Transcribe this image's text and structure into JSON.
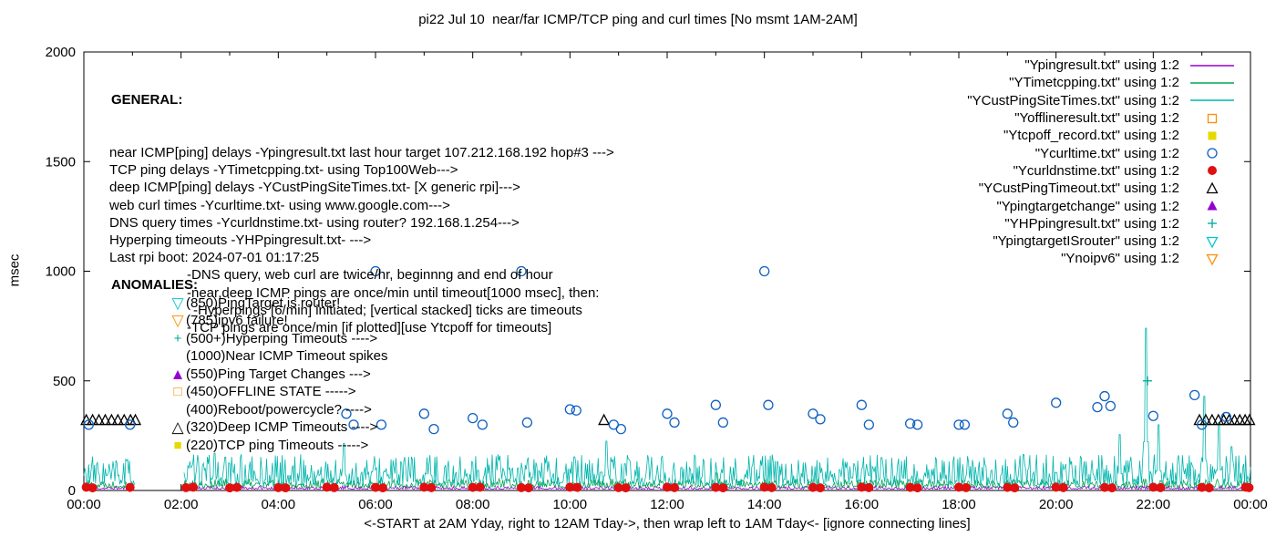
{
  "title": "pi22 Jul 10  near/far ICMP/TCP ping and curl times [No msmt 1AM-2AM]",
  "xlabel": "<-START at 2AM Yday, right to 12AM Tday->, then wrap left to 1AM Tday<- [ignore connecting lines]",
  "general": {
    "heading": "GENERAL:",
    "lines": [
      {
        "text": "near ICMP[ping] delays -Ypingresult.txt last hour target 107.212.168.192 hop#3 --->",
        "indent": 0
      },
      {
        "text": "TCP ping delays -YTimetcpping.txt- using Top100Web--->",
        "indent": 0
      },
      {
        "text": "deep ICMP[ping] delays -YCustPingSiteTimes.txt- [X generic rpi]--->",
        "indent": 0
      },
      {
        "text": "web curl times -Ycurltime.txt- using www.google.com--->",
        "indent": 0
      },
      {
        "text": "DNS query times -Ycurldnstime.txt- using router? 192.168.1.254--->",
        "indent": 0
      },
      {
        "text": "Hyperping timeouts -YHPpingresult.txt- --->",
        "indent": 0
      },
      {
        "text": "Last rpi boot: 2024-07-01 01:17:25",
        "indent": 0
      },
      {
        "text": "-DNS query, web curl are twice/hr, beginnng and end of hour",
        "indent": 1
      },
      {
        "text": "-near,deep ICMP pings are once/min until timeout[1000 msec], then:",
        "indent": 1
      },
      {
        "text": "-Hyperpings [6/min] initiated; [vertical stacked] ticks are timeouts",
        "indent": 2
      },
      {
        "text": "-TCP pings are once/min [if plotted][use Ytcpoff for timeouts]",
        "indent": 1
      }
    ]
  },
  "anomalies": {
    "heading": "ANOMALIES:",
    "items": [
      {
        "symbol": "triangle-down-open",
        "glyph": "▽",
        "color": "#00c5cd",
        "text": "(850)PingTarget is router!"
      },
      {
        "symbol": "triangle-down-open",
        "glyph": "▽",
        "color": "#ff8c00",
        "text": "(785)ipv6 failure!"
      },
      {
        "symbol": "plus",
        "glyph": "+",
        "color": "#00a896",
        "text": "(500+)Hyperping Timeouts ---->"
      },
      {
        "symbol": "none",
        "glyph": "",
        "color": "#000000",
        "text": "(1000)Near ICMP Timeout spikes"
      },
      {
        "symbol": "triangle-filled",
        "glyph": "▲",
        "color": "#9400d3",
        "text": "(550)Ping Target Changes --->"
      },
      {
        "symbol": "square-open",
        "glyph": "□",
        "color": "#ff8c00",
        "text": "(450)OFFLINE STATE ----->"
      },
      {
        "symbol": "none",
        "glyph": "",
        "color": "#000000",
        "text": "(400)Reboot/powercycle? ---->"
      },
      {
        "symbol": "triangle-open",
        "glyph": "△",
        "color": "#000000",
        "text": "(320)Deep ICMP Timeouts ---->"
      },
      {
        "symbol": "square-filled",
        "glyph": "■",
        "color": "#e6d800",
        "text": "(220)TCP ping Timeouts ----->"
      }
    ]
  },
  "legend": [
    {
      "label": "\"Ypingresult.txt\" using 1:2",
      "sample": "line",
      "color": "#9400d3"
    },
    {
      "label": "\"YTimetcpping.txt\" using 1:2",
      "sample": "line",
      "color": "#00a550"
    },
    {
      "label": "\"YCustPingSiteTimes.txt\" using 1:2",
      "sample": "line",
      "color": "#00b5ad"
    },
    {
      "label": "\"Yofflineresult.txt\" using 1:2",
      "sample": "square-open",
      "color": "#ff8c00"
    },
    {
      "label": "\"Ytcpoff_record.txt\" using 1:2",
      "sample": "square-filled",
      "color": "#e6d800"
    },
    {
      "label": "\"Ycurltime.txt\" using 1:2",
      "sample": "circle-open",
      "color": "#1060c0"
    },
    {
      "label": "\"Ycurldnstime.txt\" using 1:2",
      "sample": "circle-filled",
      "color": "#e01010"
    },
    {
      "label": "\"YCustPingTimeout.txt\" using 1:2",
      "sample": "triangle-open",
      "color": "#000000"
    },
    {
      "label": "\"Ypingtargetchange\" using 1:2",
      "sample": "triangle-filled",
      "color": "#9400d3"
    },
    {
      "label": "\"YHPpingresult.txt\" using 1:2",
      "sample": "plus",
      "color": "#00a896"
    },
    {
      "label": "\"YpingtargetISrouter\" using 1:2",
      "sample": "triangle-down-open",
      "color": "#00c5cd"
    },
    {
      "label": "\"Ynoipv6\" using 1:2",
      "sample": "triangle-down-open",
      "color": "#ff8c00"
    }
  ],
  "chart_data": {
    "type": "line",
    "title": "pi22 Jul 10  near/far ICMP/TCP ping and curl times [No msmt 1AM-2AM]",
    "x_axis": {
      "range_hours": [
        0,
        24
      ],
      "major_tick_every_hours": 2,
      "minor_tick_every_hours": 1,
      "tick_labels": [
        "00:00",
        "02:00",
        "04:00",
        "06:00",
        "08:00",
        "10:00",
        "12:00",
        "14:00",
        "16:00",
        "18:00",
        "20:00",
        "22:00",
        "00:00"
      ]
    },
    "y_axis": {
      "label": "msec",
      "range": [
        0,
        2000
      ],
      "ticks": [
        0,
        500,
        1000,
        1500,
        2000
      ]
    },
    "grid": false,
    "legend_position": "top-right-inside",
    "no_measurement_gap_hours": [
      1.05,
      2.05
    ],
    "line_series": [
      {
        "name": "Ypingresult near ICMP ping delay",
        "color": "#9400d3",
        "baseline_msec": 6,
        "noise_msec": 15,
        "seed": 11,
        "spikes": []
      },
      {
        "name": "YTimetcpping TCP ping delay",
        "color": "#00a550",
        "baseline_msec": 14,
        "noise_msec": 40,
        "seed": 22,
        "spikes": [
          [
            13.0,
            80
          ]
        ]
      },
      {
        "name": "YCustPingSiteTimes deep ICMP delay",
        "color": "#00b5ad",
        "baseline_msec": 25,
        "noise_msec": 140,
        "seed": 33,
        "spikes": [
          [
            2.7,
            170
          ],
          [
            5.35,
            215
          ],
          [
            10.75,
            225
          ],
          [
            16.4,
            150
          ],
          [
            21.3,
            255
          ],
          [
            21.85,
            740
          ],
          [
            22.1,
            300
          ],
          [
            23.05,
            430
          ],
          [
            23.35,
            310
          ],
          [
            23.6,
            200
          ]
        ]
      }
    ],
    "point_series": [
      {
        "name": "Ycurltime web curl times",
        "marker": "circle-open",
        "color": "#1060c0",
        "points": [
          [
            0.1,
            300
          ],
          [
            0.95,
            300
          ],
          [
            5.4,
            350
          ],
          [
            5.55,
            300
          ],
          [
            6.0,
            1000
          ],
          [
            6.12,
            300
          ],
          [
            7.0,
            350
          ],
          [
            7.2,
            280
          ],
          [
            8.0,
            330
          ],
          [
            8.2,
            300
          ],
          [
            9.0,
            1000
          ],
          [
            9.12,
            310
          ],
          [
            10.0,
            370
          ],
          [
            10.13,
            365
          ],
          [
            10.9,
            300
          ],
          [
            11.05,
            280
          ],
          [
            12.0,
            350
          ],
          [
            12.15,
            310
          ],
          [
            13.0,
            390
          ],
          [
            13.15,
            310
          ],
          [
            14.0,
            1000
          ],
          [
            14.08,
            390
          ],
          [
            15.0,
            350
          ],
          [
            15.15,
            325
          ],
          [
            16.0,
            390
          ],
          [
            16.15,
            300
          ],
          [
            17.0,
            305
          ],
          [
            17.15,
            300
          ],
          [
            18.0,
            300
          ],
          [
            18.12,
            300
          ],
          [
            19.0,
            350
          ],
          [
            19.12,
            310
          ],
          [
            20.0,
            400
          ],
          [
            20.85,
            380
          ],
          [
            21.0,
            430
          ],
          [
            21.12,
            385
          ],
          [
            22.0,
            340
          ],
          [
            22.85,
            435
          ],
          [
            23.0,
            300
          ],
          [
            23.5,
            335
          ]
        ]
      },
      {
        "name": "Ycurldnstime DNS query times",
        "marker": "circle-filled",
        "color": "#e01010",
        "points": [
          [
            0.05,
            15
          ],
          [
            0.18,
            12
          ],
          [
            0.95,
            14
          ],
          [
            2.1,
            13
          ],
          [
            2.25,
            15
          ],
          [
            3.0,
            12
          ],
          [
            3.15,
            14
          ],
          [
            4.0,
            13
          ],
          [
            4.15,
            12
          ],
          [
            5.0,
            15
          ],
          [
            5.15,
            13
          ],
          [
            6.0,
            14
          ],
          [
            6.15,
            12
          ],
          [
            7.0,
            15
          ],
          [
            7.15,
            13
          ],
          [
            8.0,
            14
          ],
          [
            8.15,
            15
          ],
          [
            9.0,
            13
          ],
          [
            9.15,
            12
          ],
          [
            10.0,
            15
          ],
          [
            10.15,
            14
          ],
          [
            11.0,
            13
          ],
          [
            11.15,
            12
          ],
          [
            12.0,
            15
          ],
          [
            12.15,
            13
          ],
          [
            13.0,
            14
          ],
          [
            13.15,
            12
          ],
          [
            14.0,
            15
          ],
          [
            14.15,
            13
          ],
          [
            15.0,
            14
          ],
          [
            15.15,
            12
          ],
          [
            16.0,
            15
          ],
          [
            16.15,
            13
          ],
          [
            17.0,
            14
          ],
          [
            17.15,
            12
          ],
          [
            18.0,
            15
          ],
          [
            18.15,
            13
          ],
          [
            19.0,
            14
          ],
          [
            19.15,
            12
          ],
          [
            20.0,
            15
          ],
          [
            20.15,
            13
          ],
          [
            21.0,
            14
          ],
          [
            21.15,
            12
          ],
          [
            22.0,
            15
          ],
          [
            22.15,
            13
          ],
          [
            23.0,
            14
          ],
          [
            23.15,
            12
          ],
          [
            23.9,
            15
          ],
          [
            23.97,
            13
          ]
        ]
      },
      {
        "name": "YCustPingTimeout deep ICMP timeouts",
        "marker": "triangle-open",
        "color": "#000000",
        "points": [
          [
            0.05,
            320
          ],
          [
            0.18,
            320
          ],
          [
            0.31,
            320
          ],
          [
            0.44,
            320
          ],
          [
            0.57,
            320
          ],
          [
            0.7,
            320
          ],
          [
            0.83,
            320
          ],
          [
            0.96,
            320
          ],
          [
            1.06,
            320
          ],
          [
            10.7,
            320
          ],
          [
            22.95,
            320
          ],
          [
            23.08,
            320
          ],
          [
            23.21,
            320
          ],
          [
            23.34,
            320
          ],
          [
            23.45,
            320
          ],
          [
            23.56,
            320
          ],
          [
            23.67,
            320
          ],
          [
            23.78,
            320
          ],
          [
            23.89,
            320
          ],
          [
            23.98,
            320
          ]
        ]
      },
      {
        "name": "YHPpingresult hyperping timeouts",
        "marker": "plus",
        "color": "#00a896",
        "points": [
          [
            21.88,
            500
          ]
        ]
      },
      {
        "name": "Yofflineresult offline state",
        "marker": "square-open",
        "color": "#ff8c00",
        "points": []
      },
      {
        "name": "Ytcpoff_record TCP ping timeouts",
        "marker": "square-filled",
        "color": "#e6d800",
        "points": []
      },
      {
        "name": "Ypingtargetchange ping target changes",
        "marker": "triangle-filled",
        "color": "#9400d3",
        "points": []
      },
      {
        "name": "YpingtargetISrouter",
        "marker": "triangle-down-open",
        "color": "#00c5cd",
        "points": []
      },
      {
        "name": "Ynoipv6",
        "marker": "triangle-down-open",
        "color": "#ff8c00",
        "points": []
      }
    ]
  }
}
